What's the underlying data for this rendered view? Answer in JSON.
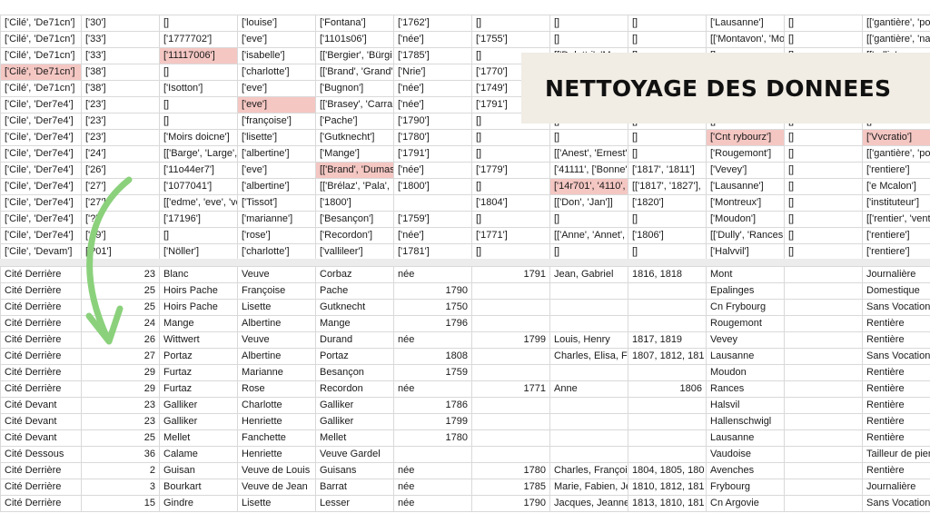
{
  "banner": {
    "title": "NETTOYAGE DES DONNEES"
  },
  "colors": {
    "highlight": "#f4c7c3",
    "arrow": "#8bd17c",
    "banner_bg": "#f1ece4"
  },
  "raw_rows": [
    [
      "['Cilé', 'De71cn']",
      "['30']",
      "[]",
      "['louise']",
      "['Fontana']",
      "['1762']",
      "[]",
      "[]",
      "[]",
      "['Lausanne']",
      "[]",
      "[['gantière', 'pon"
    ],
    [
      "['Cilé', 'De71cn']",
      "['33']",
      "['1777702']",
      "['eve']",
      "['1101s06']",
      "['née']",
      "['1755']",
      "[]",
      "[]",
      "[['Montavon', 'Mo",
      "[]",
      "[['gantière', 'natt"
    ],
    [
      "['Cilé', 'De71cn']",
      "['33']",
      "['11117006']",
      "['isabelle']",
      "[['Bergier', 'Bürgi",
      "['1785']",
      "[]",
      "[['Dolattri', 'Mo",
      "[]",
      "[]",
      "[]",
      "[['rollin'"
    ],
    [
      "['Cilé', 'De71cn']",
      "['38']",
      "[]",
      "['charlotte']",
      "[['Brand', 'Grand'",
      "['Nrie']",
      "['1770']",
      "",
      "",
      "",
      "",
      ""
    ],
    [
      "['Cilé', 'De71cn']",
      "['38']",
      "['Isotton']",
      "['eve']",
      "['Bugnon']",
      "['née']",
      "['1749']",
      "",
      "",
      "",
      "",
      ""
    ],
    [
      "['Cile', 'Der7e4']",
      "['23']",
      "[]",
      "['eve']",
      "[['Brasey', 'Carra",
      "['née']",
      "['1791']",
      "",
      "",
      "",
      "",
      ""
    ],
    [
      "['Cile', 'Der7e4']",
      "['23']",
      "[]",
      "['françoise']",
      "['Pache']",
      "['1790']",
      "[]",
      "[]",
      "[]",
      "[]",
      "[]",
      "[]"
    ],
    [
      "['Cile', 'Der7e4']",
      "['23']",
      "['Moirs doicne']",
      "['lisette']",
      "['Gutknecht']",
      "['1780']",
      "[]",
      "[]",
      "[]",
      "['Cnt rybourz']",
      "[]",
      "['Vvcratio']"
    ],
    [
      "['Cile', 'Der7e4']",
      "['24']",
      "[['Barge', 'Large',",
      "['albertine']",
      "['Mange']",
      "['1791']",
      "[]",
      "[['Anest', 'Ernest'",
      "[]",
      "['Rougemont']",
      "[]",
      "[['gantière', 'pon"
    ],
    [
      "['Cile', 'Der7e4']",
      "['26']",
      "['11o44er7']",
      "['eve']",
      "[['Brand', 'Dumas",
      "['née']",
      "['1779']",
      "['41111', ['Bonne'",
      "['1817', '1811']",
      "['Vevey']",
      "[]",
      "['rentiere']"
    ],
    [
      "['Cile', 'Der7e4']",
      "['27']",
      "['1077041']",
      "['albertine']",
      "[['Brélaz', 'Pala',",
      "['1800']",
      "[]",
      "['14r701', '4110',",
      "[['1817', '1827'],",
      "['Lausanne']",
      "[]",
      "['e Mcalon']"
    ],
    [
      "['Cile', 'Der7e4']",
      "['27']",
      "[['edme', 'eve', 've",
      "['Tissot']",
      "['1800']",
      "",
      "['1804']",
      "[['Don', 'Jan']]",
      "['1820']",
      "['Montreux']",
      "[]",
      "['instituteur']"
    ],
    [
      "['Cile', 'Der7e4']",
      "['?']",
      "['17196']",
      "['marianne']",
      "['Besançon']",
      "['1759']",
      "[]",
      "[]",
      "[]",
      "['Moudon']",
      "[]",
      "[['rentier', 'venti"
    ],
    [
      "['Cile', 'Der7e4']",
      "['?9']",
      "[]",
      "['rose']",
      "['Recordon']",
      "['née']",
      "['1771']",
      "[['Anne', 'Annet',",
      "['1806']",
      "[['Dully', 'Rances",
      "[]",
      "['rentiere']"
    ],
    [
      "['Cile', 'Devam']",
      "['?01']",
      "['Nöller']",
      "['charlotte']",
      "['vallileer']",
      "['1781']",
      "[]",
      "[]",
      "[]",
      "['Halvvil']",
      "[]",
      "['rentiere']"
    ]
  ],
  "clean_rows": [
    [
      "Cité Derrière",
      "23",
      "Blanc",
      "Veuve",
      "Corbaz",
      "née",
      "1791",
      "Jean, Gabriel",
      "1816, 1818",
      "Mont",
      "",
      "Journalière"
    ],
    [
      "Cité Derrière",
      "25",
      "Hoirs Pache",
      "Françoise",
      "Pache",
      "1790",
      "",
      "",
      "",
      "Epalinges",
      "",
      "Domestique"
    ],
    [
      "Cité Derrière",
      "25",
      "Hoirs Pache",
      "Lisette",
      "Gutknecht",
      "1750",
      "",
      "",
      "",
      "Cn Frybourg",
      "",
      "Sans Vocation"
    ],
    [
      "Cité Derrière",
      "24",
      "Mange",
      "Albertine",
      "Mange",
      "1796",
      "",
      "",
      "",
      "Rougemont",
      "",
      "Rentière"
    ],
    [
      "Cité Derrière",
      "26",
      "Wittwert",
      "Veuve",
      "Durand",
      "née",
      "1799",
      "Louis, Henry",
      "1817, 1819",
      "Vevey",
      "",
      "Rentière"
    ],
    [
      "Cité Derrière",
      "27",
      "Portaz",
      "Albertine",
      "Portaz",
      "1808",
      "",
      "Charles, Elisa, F",
      "1807, 1812, 181",
      "Lausanne",
      "",
      "Sans Vocation"
    ],
    [
      "Cité Derrière",
      "29",
      "Furtaz",
      "Marianne",
      "Besançon",
      "1759",
      "",
      "",
      "",
      "Moudon",
      "",
      "Rentière"
    ],
    [
      "Cité Derrière",
      "29",
      "Furtaz",
      "Rose",
      "Recordon",
      "née",
      "1771",
      "Anne",
      "1806",
      "Rances",
      "",
      "Rentière"
    ],
    [
      "Cité Devant",
      "23",
      "Galliker",
      "Charlotte",
      "Galliker",
      "1786",
      "",
      "",
      "",
      "Halsvil",
      "",
      "Rentière"
    ],
    [
      "Cité Devant",
      "23",
      "Galliker",
      "Henriette",
      "Galliker",
      "1799",
      "",
      "",
      "",
      "Hallenschwigl",
      "",
      "Rentière"
    ],
    [
      "Cité Devant",
      "25",
      "Mellet",
      "Fanchette",
      "Mellet",
      "1780",
      "",
      "",
      "",
      "Lausanne",
      "",
      "Rentière"
    ],
    [
      "Cité Dessous",
      "36",
      "Calame",
      "Henriette",
      "Veuve Gardel",
      "",
      "",
      "",
      "",
      "Vaudoise",
      "",
      "Tailleur de pierre"
    ],
    [
      "Cité Derrière",
      "2",
      "Guisan",
      "Veuve de Louis",
      "Guisans",
      "née",
      "1780",
      "Charles, François",
      "1804, 1805, 180",
      "Avenches",
      "",
      "Rentière"
    ],
    [
      "Cité Derrière",
      "3",
      "Bourkart",
      "Veuve de Jean",
      "Barrat",
      "née",
      "1785",
      "Marie, Fabien, Je",
      "1810, 1812, 181",
      "Frybourg",
      "",
      "Journalière"
    ],
    [
      "Cité Derrière",
      "15",
      "Gindre",
      "Lisette",
      "Lesser",
      "née",
      "1790",
      "Jacques, Jeanne",
      "1813, 1810, 181",
      "Cn Argovie",
      "",
      "Sans Vocation"
    ]
  ]
}
